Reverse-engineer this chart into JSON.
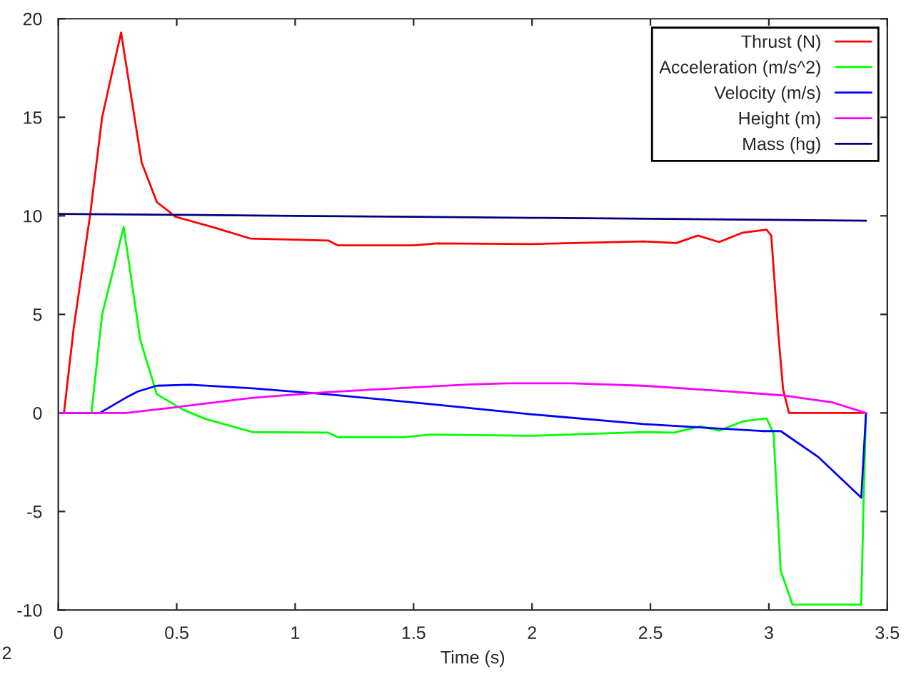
{
  "chart_data": {
    "type": "line",
    "xlabel": "Time (s)",
    "xlim": [
      0,
      3.5
    ],
    "ylim": [
      -10,
      20
    ],
    "xticks": [
      0,
      0.5,
      1,
      1.5,
      2,
      2.5,
      3,
      3.5
    ],
    "yticks": [
      -10,
      -5,
      0,
      5,
      10,
      15,
      20
    ],
    "grid": false,
    "legend": "top right",
    "marker": "none",
    "line_style": "solid",
    "annotations": [
      "2"
    ],
    "series": [
      {
        "name": "Thrust (N)",
        "color": "#ff0000",
        "x": [
          0,
          0.024,
          0.065,
          0.135,
          0.185,
          0.265,
          0.352,
          0.416,
          0.495,
          0.66,
          0.81,
          1.14,
          1.18,
          1.5,
          1.6,
          2.0,
          2.47,
          2.61,
          2.7,
          2.79,
          2.89,
          2.99,
          3.01,
          3.04,
          3.06,
          3.085,
          3.4
        ],
        "values": [
          0,
          0,
          4.3,
          10.1,
          15,
          19.3,
          12.7,
          10.7,
          9.95,
          9.4,
          8.85,
          8.75,
          8.5,
          8.5,
          8.6,
          8.57,
          8.7,
          8.62,
          9.0,
          8.67,
          9.15,
          9.3,
          9.0,
          4.0,
          1.2,
          0,
          0
        ]
      },
      {
        "name": "Acceleration (m/s^2)",
        "color": "#00ff00",
        "x": [
          0,
          0.14,
          0.185,
          0.235,
          0.276,
          0.346,
          0.416,
          0.526,
          0.62,
          0.82,
          1.14,
          1.18,
          1.46,
          1.57,
          2.0,
          2.47,
          2.6,
          2.71,
          2.79,
          2.89,
          2.99,
          3.02,
          3.05,
          3.1,
          3.39,
          3.4,
          3.41
        ],
        "values": [
          0,
          0,
          5.0,
          7.4,
          9.45,
          3.7,
          0.95,
          0.17,
          -0.3,
          -0.97,
          -1.0,
          -1.23,
          -1.23,
          -1.1,
          -1.16,
          -0.97,
          -1.0,
          -0.68,
          -0.9,
          -0.43,
          -0.27,
          -1.04,
          -8.0,
          -9.73,
          -9.73,
          -4.4,
          0
        ]
      },
      {
        "name": "Velocity (m/s)",
        "color": "#0000ff",
        "x": [
          0,
          0.175,
          0.285,
          0.336,
          0.416,
          0.557,
          0.82,
          1.14,
          1.56,
          1.74,
          2.0,
          2.47,
          2.97,
          3.05,
          3.21,
          3.39,
          3.41
        ],
        "values": [
          0,
          0,
          0.77,
          1.09,
          1.38,
          1.43,
          1.25,
          0.94,
          0.46,
          0.24,
          -0.07,
          -0.56,
          -0.92,
          -0.92,
          -2.25,
          -4.3,
          0
        ]
      },
      {
        "name": "Height (m)",
        "color": "#ff00ff",
        "x": [
          0,
          0.285,
          0.497,
          0.82,
          1.14,
          1.74,
          1.9,
          2.17,
          2.47,
          2.77,
          3.05,
          3.27,
          3.41
        ],
        "values": [
          0,
          0,
          0.29,
          0.77,
          1.06,
          1.45,
          1.5,
          1.5,
          1.38,
          1.14,
          0.9,
          0.53,
          0
        ]
      },
      {
        "name": "Mass (hg)",
        "color": "#000080",
        "x": [
          0,
          0.5,
          1.0,
          1.5,
          2.0,
          2.5,
          3.0,
          3.41
        ],
        "values": [
          10.1,
          10.05,
          10.0,
          9.95,
          9.9,
          9.85,
          9.8,
          9.75
        ]
      }
    ]
  }
}
